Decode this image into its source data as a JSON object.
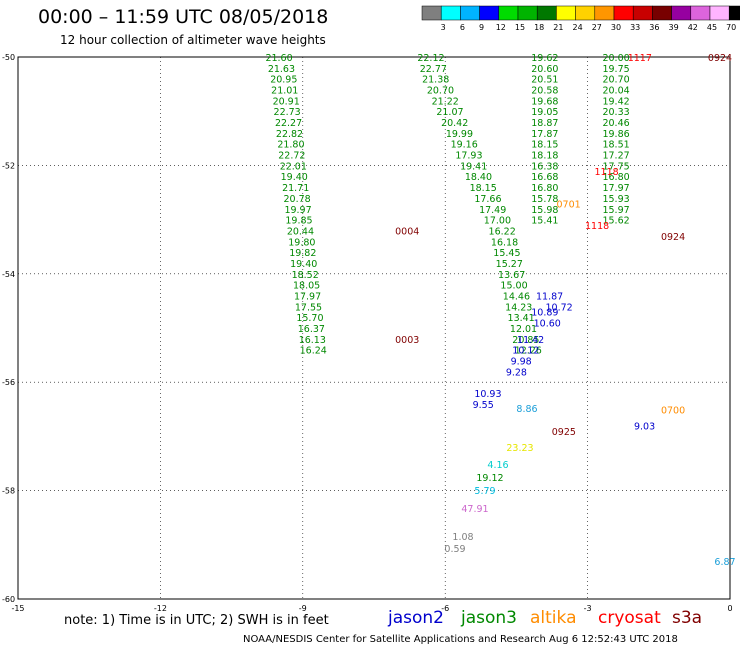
{
  "title": "00:00 – 11:59 UTC 08/05/2018",
  "subtitle": "12 hour collection of altimeter wave heights",
  "note": "note: 1) Time is in UTC; 2) SWH is in feet",
  "footer": "NOAA/NESDIS Center for Satellite Applications and Research   Aug  6 12:52:43 UTC 2018",
  "colorbar": {
    "ticks": [
      "3",
      "6",
      "9",
      "12",
      "15",
      "18",
      "21",
      "24",
      "27",
      "30",
      "33",
      "36",
      "39",
      "42",
      "45",
      "70",
      "(ft)"
    ],
    "colors": [
      "#7f7f7f",
      "#00ffff",
      "#00b4ff",
      "#0000ff",
      "#00dc00",
      "#00b400",
      "#007800",
      "#ffff00",
      "#ffd200",
      "#ff9600",
      "#ff0000",
      "#c80000",
      "#780000",
      "#9600a0",
      "#dc64dc",
      "#ffb4ff",
      "#000000"
    ]
  },
  "satellites": [
    {
      "name": "jason2",
      "color": "#0000cc"
    },
    {
      "name": "jason3",
      "color": "#008800"
    },
    {
      "name": "altika",
      "color": "#ff8c00"
    },
    {
      "name": "cryosat",
      "color": "#ff0000"
    },
    {
      "name": "s3a",
      "color": "#800000"
    }
  ],
  "chart_data": {
    "type": "scatter",
    "title": "00:00 – 11:59 UTC 08/05/2018",
    "subtitle": "12 hour collection of altimeter wave heights",
    "xlim": [
      -15,
      0
    ],
    "ylim": [
      -60,
      -50
    ],
    "x_ticks": [
      "-15",
      "-12",
      "-9",
      "-6",
      "-3",
      "0"
    ],
    "y_ticks": [
      "-50",
      "-52",
      "-54",
      "-56",
      "-58",
      "-60"
    ],
    "grid": true,
    "series": [
      {
        "name": "jason3",
        "color": "#008800",
        "points": [
          [
            -9.5,
            -50.0,
            "21.60"
          ],
          [
            -9.45,
            -50.2,
            "21.63"
          ],
          [
            -9.4,
            -50.4,
            "20.95"
          ],
          [
            -9.38,
            -50.6,
            "21.01"
          ],
          [
            -9.35,
            -50.8,
            "20.91"
          ],
          [
            -9.33,
            -51.0,
            "22.73"
          ],
          [
            -9.3,
            -51.2,
            "22.27"
          ],
          [
            -9.28,
            -51.4,
            "22.82"
          ],
          [
            -9.25,
            -51.6,
            "21.80"
          ],
          [
            -9.23,
            -51.8,
            "22.72"
          ],
          [
            -9.2,
            -52.0,
            "22.01"
          ],
          [
            -9.18,
            -52.2,
            "19.40"
          ],
          [
            -9.15,
            -52.4,
            "21.71"
          ],
          [
            -9.12,
            -52.6,
            "20.78"
          ],
          [
            -9.1,
            -52.8,
            "19.97"
          ],
          [
            -9.08,
            -53.0,
            "19.85"
          ],
          [
            -9.05,
            -53.2,
            "20.44"
          ],
          [
            -9.02,
            -53.4,
            "19.80"
          ],
          [
            -9.0,
            -53.6,
            "19.82"
          ],
          [
            -8.98,
            -53.8,
            "19.40"
          ],
          [
            -8.95,
            -54.0,
            "18.52"
          ],
          [
            -8.92,
            -54.2,
            "18.05"
          ],
          [
            -8.9,
            -54.4,
            "17.97"
          ],
          [
            -8.88,
            -54.6,
            "17.55"
          ],
          [
            -8.85,
            -54.8,
            "15.70"
          ],
          [
            -8.82,
            -55.0,
            "16.37"
          ],
          [
            -8.8,
            -55.2,
            "16.13"
          ],
          [
            -8.78,
            -55.4,
            "16.24"
          ],
          [
            -6.3,
            -50.0,
            "22.12"
          ],
          [
            -6.25,
            -50.2,
            "22.77"
          ],
          [
            -6.2,
            -50.4,
            "21.38"
          ],
          [
            -6.1,
            -50.6,
            "20.70"
          ],
          [
            -6.0,
            -50.8,
            "21.22"
          ],
          [
            -5.9,
            -51.0,
            "21.07"
          ],
          [
            -5.8,
            -51.2,
            "20.42"
          ],
          [
            -5.7,
            -51.4,
            "19.99"
          ],
          [
            -5.6,
            -51.6,
            "19.16"
          ],
          [
            -5.5,
            -51.8,
            "17.93"
          ],
          [
            -5.4,
            -52.0,
            "19.41"
          ],
          [
            -5.3,
            -52.2,
            "18.40"
          ],
          [
            -5.2,
            -52.4,
            "18.15"
          ],
          [
            -5.1,
            -52.6,
            "17.66"
          ],
          [
            -5.0,
            -52.8,
            "17.49"
          ],
          [
            -4.9,
            -53.0,
            "17.00"
          ],
          [
            -4.8,
            -53.2,
            "16.22"
          ],
          [
            -4.75,
            -53.4,
            "16.18"
          ],
          [
            -4.7,
            -53.6,
            "15.45"
          ],
          [
            -4.65,
            -53.8,
            "15.27"
          ],
          [
            -4.6,
            -54.0,
            "13.67"
          ],
          [
            -4.55,
            -54.2,
            "15.00"
          ],
          [
            -4.5,
            -54.4,
            "14.46"
          ],
          [
            -4.45,
            -54.6,
            "14.23"
          ],
          [
            -4.4,
            -54.8,
            "13.41"
          ],
          [
            -4.35,
            -55.0,
            "12.01"
          ],
          [
            -4.3,
            -55.2,
            "20.85"
          ],
          [
            -4.25,
            -55.4,
            "12.26"
          ],
          [
            -3.9,
            -50.0,
            "19.62"
          ],
          [
            -3.9,
            -50.2,
            "20.60"
          ],
          [
            -3.9,
            -50.4,
            "20.51"
          ],
          [
            -3.9,
            -50.6,
            "20.58"
          ],
          [
            -3.9,
            -50.8,
            "19.68"
          ],
          [
            -3.9,
            -51.0,
            "19.05"
          ],
          [
            -3.9,
            -51.2,
            "18.87"
          ],
          [
            -3.9,
            -51.4,
            "17.87"
          ],
          [
            -3.9,
            -51.6,
            "18.15"
          ],
          [
            -3.9,
            -51.8,
            "18.18"
          ],
          [
            -3.9,
            -52.0,
            "16.38"
          ],
          [
            -3.9,
            -52.2,
            "16.68"
          ],
          [
            -3.9,
            -52.4,
            "16.80"
          ],
          [
            -3.9,
            -52.6,
            "15.78"
          ],
          [
            -3.9,
            -52.8,
            "15.98"
          ],
          [
            -3.9,
            -53.0,
            "15.41"
          ],
          [
            -2.4,
            -50.0,
            "20.00"
          ],
          [
            -2.4,
            -50.2,
            "19.75"
          ],
          [
            -2.4,
            -50.4,
            "20.70"
          ],
          [
            -2.4,
            -50.6,
            "20.04"
          ],
          [
            -2.4,
            -50.8,
            "19.42"
          ],
          [
            -2.4,
            -51.0,
            "20.33"
          ],
          [
            -2.4,
            -51.2,
            "20.46"
          ],
          [
            -2.4,
            -51.4,
            "19.86"
          ],
          [
            -2.4,
            -51.6,
            "18.51"
          ],
          [
            -2.4,
            -51.8,
            "17.27"
          ],
          [
            -2.4,
            -52.0,
            "17.75"
          ],
          [
            -2.4,
            -52.2,
            "16.80"
          ],
          [
            -2.4,
            -52.4,
            "17.97"
          ],
          [
            -2.4,
            -52.6,
            "15.93"
          ],
          [
            -2.4,
            -52.8,
            "15.97"
          ],
          [
            -2.4,
            -53.0,
            "15.62"
          ]
        ]
      },
      {
        "name": "jason2",
        "color": "#0000cc",
        "points": [
          [
            -3.8,
            -54.4,
            "11.87"
          ],
          [
            -3.6,
            -54.6,
            "10.72"
          ],
          [
            -3.9,
            -54.7,
            "10.89"
          ],
          [
            -3.85,
            -54.9,
            "10.60"
          ],
          [
            -4.2,
            -55.2,
            "11.42"
          ],
          [
            -4.3,
            -55.4,
            "10.12"
          ],
          [
            -4.4,
            -55.6,
            "9.98"
          ],
          [
            -4.5,
            -55.8,
            "9.28"
          ],
          [
            -5.1,
            -56.2,
            "10.93"
          ],
          [
            -5.2,
            -56.4,
            "9.55"
          ],
          [
            -1.8,
            -56.8,
            "9.03"
          ]
        ]
      },
      {
        "name": "altika",
        "color": "#ff8c00",
        "points": [
          [
            -3.4,
            -52.7,
            "0701"
          ],
          [
            -1.2,
            -56.5,
            "0700"
          ]
        ]
      },
      {
        "name": "cryosat",
        "color": "#ff0000",
        "points": [
          [
            -1.9,
            -50.0,
            "1117"
          ],
          [
            -2.6,
            -52.1,
            "1118"
          ],
          [
            -2.8,
            -53.1,
            "1118"
          ]
        ]
      },
      {
        "name": "s3a",
        "color": "#800000",
        "points": [
          [
            -6.8,
            -53.2,
            "0004"
          ],
          [
            -6.8,
            -55.2,
            "0003"
          ],
          [
            -3.5,
            -56.9,
            "0925"
          ],
          [
            -1.2,
            -53.3,
            "0924"
          ],
          [
            0,
            -50.0,
            "0924"
          ]
        ]
      }
    ],
    "other_values": [
      {
        "value": "8.86",
        "color": "#1a9ed8"
      },
      {
        "value": "23.23",
        "color": "#e6e600"
      },
      {
        "value": "4.16",
        "color": "#00cccc"
      },
      {
        "value": "19.12",
        "color": "#008800"
      },
      {
        "value": "5.79",
        "color": "#00bbdd"
      },
      {
        "value": "47.91",
        "color": "#cc66cc"
      },
      {
        "value": "1.08",
        "color": "#7f7f7f"
      },
      {
        "value": "0.59",
        "color": "#7f7f7f"
      },
      {
        "value": "6.87",
        "color": "#1a9ed8"
      }
    ]
  }
}
